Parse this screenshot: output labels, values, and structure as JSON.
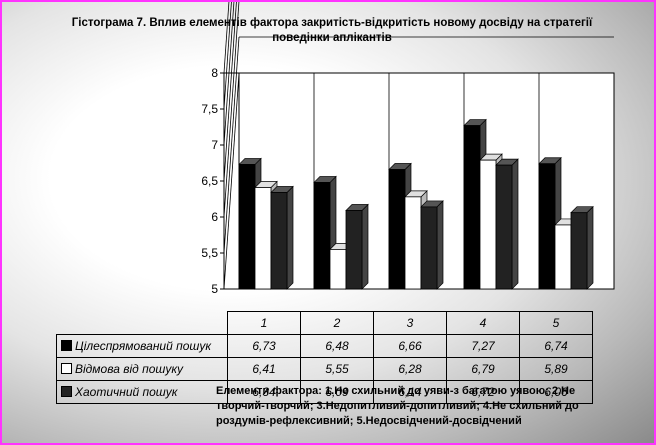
{
  "chart_data": {
    "type": "bar",
    "title": "Гістограма 7. Вплив елементів фактора закритість-відкритість новому досвіду на стратегії поведінки аплікантів",
    "categories": [
      "1",
      "2",
      "3",
      "4",
      "5"
    ],
    "ylim": [
      5,
      8
    ],
    "yticks": [
      "8",
      "7,5",
      "7",
      "6,5",
      "6",
      "5,5",
      "5"
    ],
    "grid": true,
    "series": [
      {
        "name": "Цілеспрямований пошук",
        "color": "#000000",
        "values": [
          6.73,
          6.48,
          6.66,
          7.27,
          6.74
        ],
        "labels": [
          "6,73",
          "6,48",
          "6,66",
          "7,27",
          "6,74"
        ]
      },
      {
        "name": "Відмова від пошуку",
        "color": "#ffffff",
        "values": [
          6.41,
          5.55,
          6.28,
          6.79,
          5.89
        ],
        "labels": [
          "6,41",
          "5,55",
          "6,28",
          "6,79",
          "5,89"
        ]
      },
      {
        "name": "Хаотичний пошук",
        "color": "#222222",
        "values": [
          6.34,
          6.09,
          6.14,
          6.72,
          6.06
        ],
        "labels": [
          "6,34",
          "6,09",
          "6,14",
          "6,72",
          "6,06"
        ]
      }
    ]
  },
  "note": "Елементи фактора: 1.Не схильний до уяви-з багатою уявою; 2.Не творчий-творчий; 3.Недопитливий-допитливий; 4.Не схильний до роздумів-рефлексивний; 5.Недосвідчений-досвідчений"
}
